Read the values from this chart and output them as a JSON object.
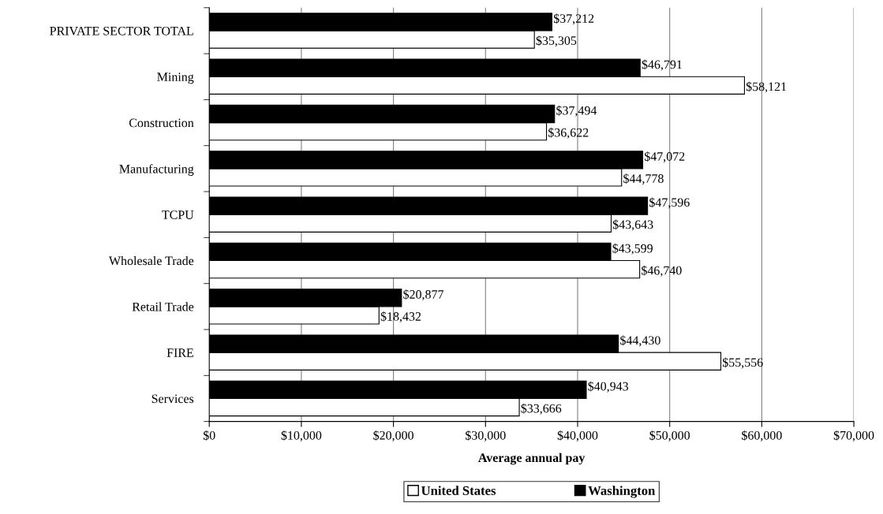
{
  "chart_data": {
    "type": "bar",
    "orientation": "horizontal",
    "xlabel": "Average annual pay",
    "categories": [
      "PRIVATE SECTOR TOTAL",
      "Mining",
      "Construction",
      "Manufacturing",
      "TCPU",
      "Wholesale Trade",
      "Retail Trade",
      "FIRE",
      "Services"
    ],
    "series": [
      {
        "name": "United States",
        "color": "#ffffff",
        "values": [
          35305,
          58121,
          36622,
          44778,
          43643,
          46740,
          18432,
          55556,
          33666
        ],
        "value_labels": [
          "$35,305",
          "$58,121",
          "$36,622",
          "$44,778",
          "$43,643",
          "$46,740",
          "$18,432",
          "$55,556",
          "$33,666"
        ]
      },
      {
        "name": "Washington",
        "color": "#000000",
        "values": [
          37212,
          46791,
          37494,
          47072,
          47596,
          43599,
          20877,
          44430,
          40943
        ],
        "value_labels": [
          "$37,212",
          "$46,791",
          "$37,494",
          "$47,072",
          "$47,596",
          "$43,599",
          "$20,877",
          "$44,430",
          "$40,943"
        ]
      }
    ],
    "xlim": [
      0,
      70000
    ],
    "xticks": [
      {
        "value": 0,
        "label": "$0"
      },
      {
        "value": 10000,
        "label": "$10,000"
      },
      {
        "value": 20000,
        "label": "$20,000"
      },
      {
        "value": 30000,
        "label": "$30,000"
      },
      {
        "value": 40000,
        "label": "$40,000"
      },
      {
        "value": 50000,
        "label": "$50,000"
      },
      {
        "value": 60000,
        "label": "$60,000"
      },
      {
        "value": 70000,
        "label": "$70,000"
      }
    ],
    "grid": "x",
    "legend": "bottom"
  }
}
